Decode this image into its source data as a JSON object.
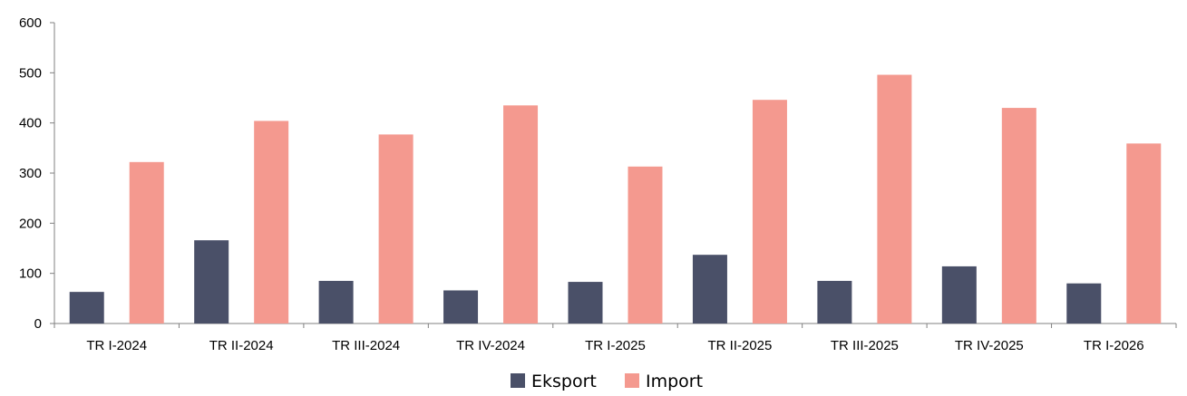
{
  "chart_data": {
    "type": "bar",
    "title": "",
    "xlabel": "",
    "ylabel": "",
    "categories": [
      "TR I-2024",
      "TR II-2024",
      "TR III-2024",
      "TR IV-2024",
      "TR I-2025",
      "TR II-2025",
      "TR III-2025",
      "TR IV-2025",
      "TR I-2026"
    ],
    "series": [
      {
        "name": "Eksport",
        "color": "#4a5068",
        "values": [
          63,
          166,
          85,
          66,
          83,
          137,
          85,
          114,
          80
        ]
      },
      {
        "name": "Import",
        "color": "#f4998f",
        "values": [
          322,
          404,
          377,
          435,
          313,
          446,
          496,
          430,
          359
        ]
      }
    ],
    "ylim": [
      0,
      600
    ],
    "yticks": [
      0,
      100,
      200,
      300,
      400,
      500,
      600
    ],
    "grid": false,
    "legend": "bottom-center"
  }
}
